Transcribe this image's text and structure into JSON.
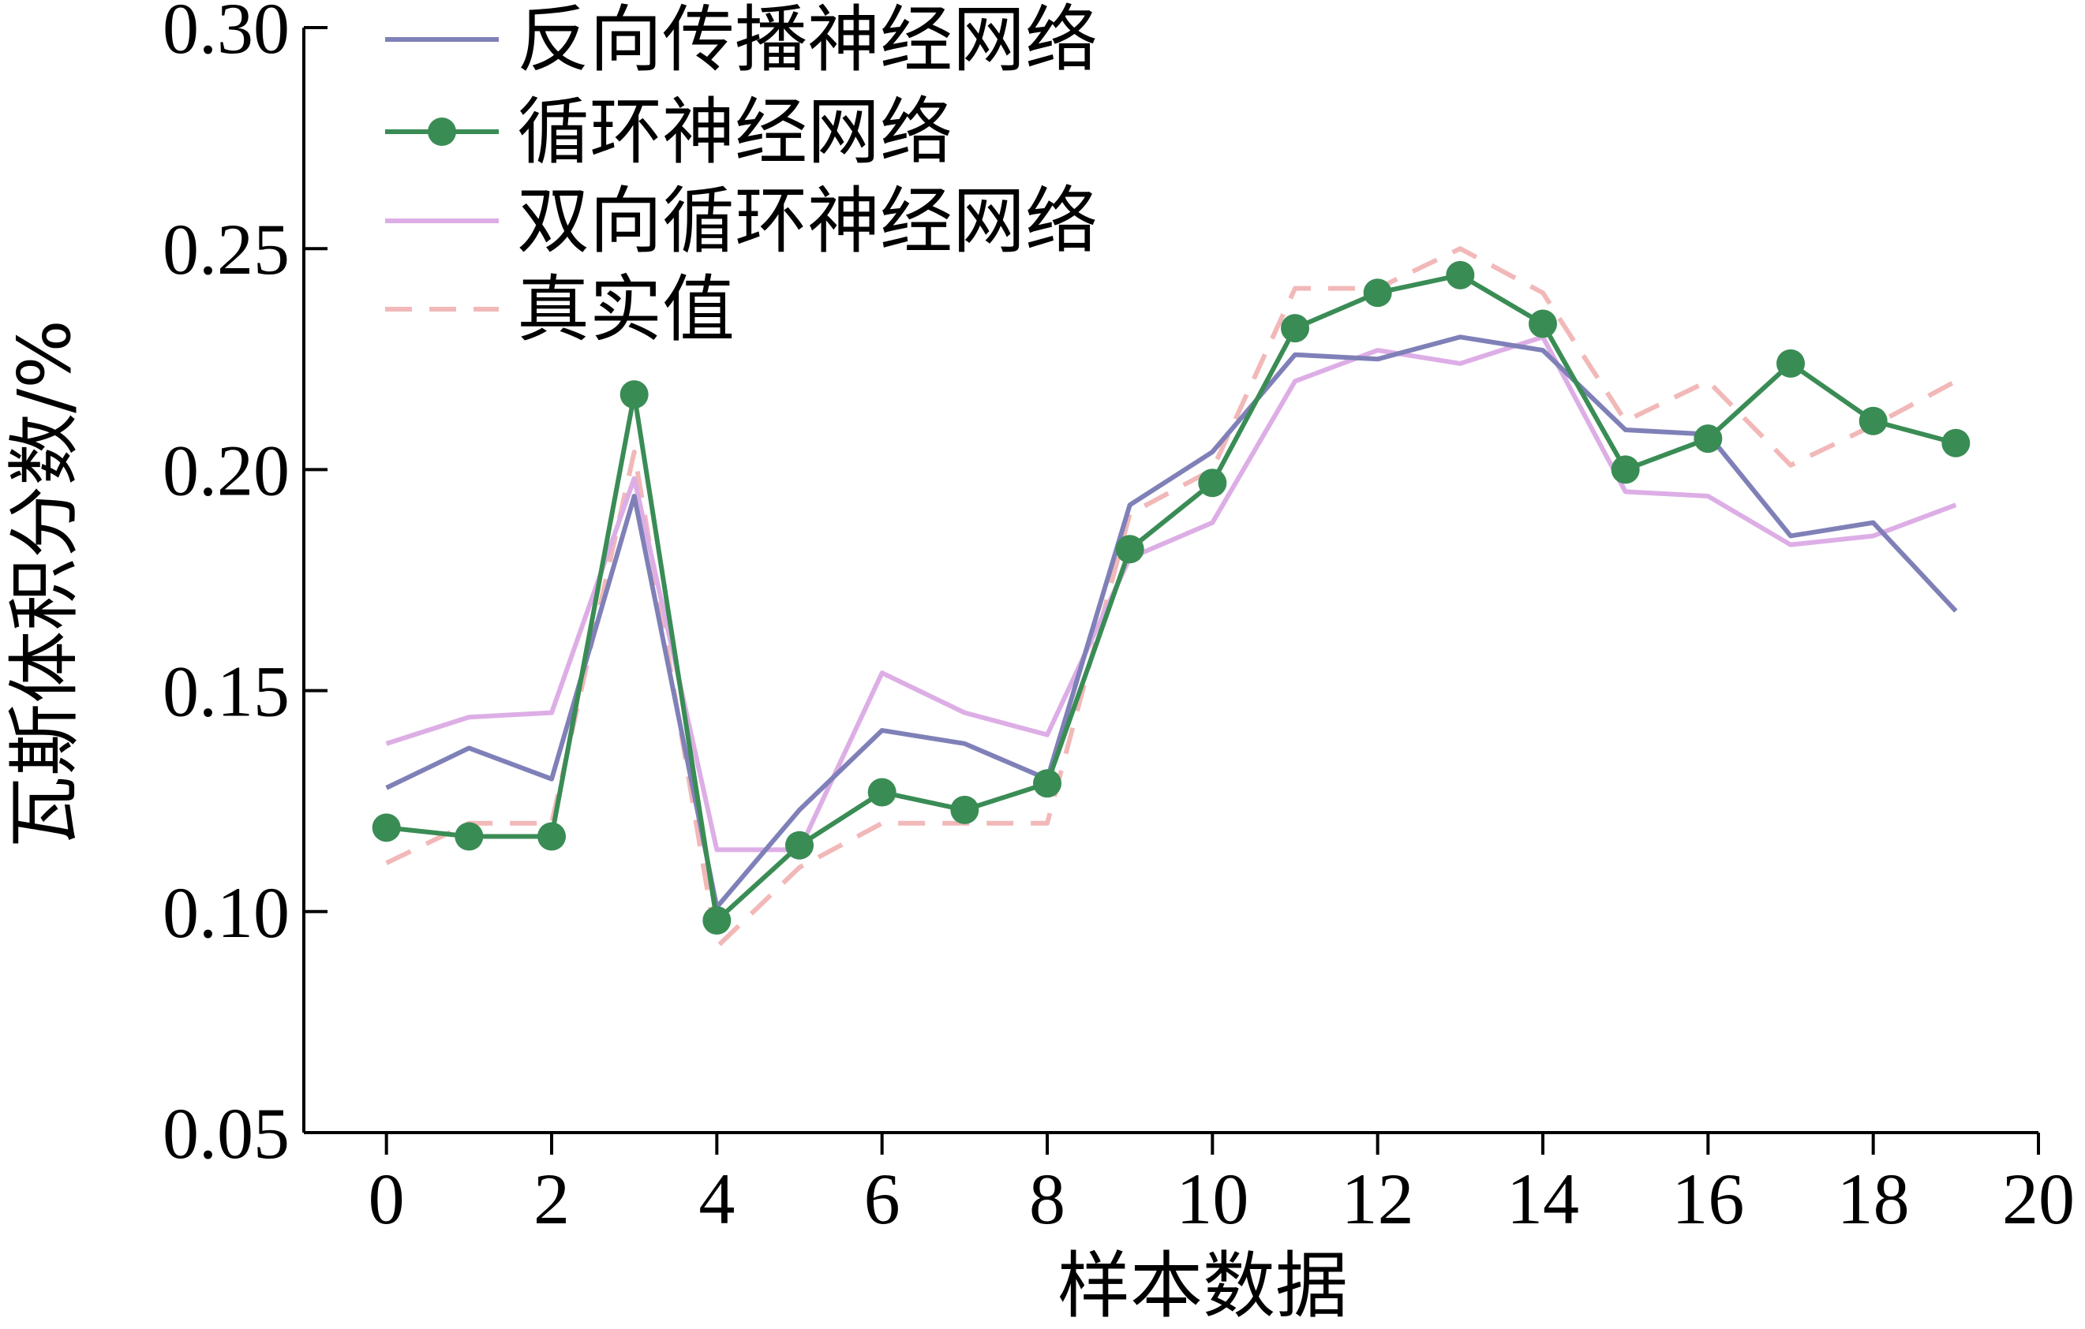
{
  "chart_data": {
    "type": "line",
    "xlabel": "样本数据",
    "ylabel": "瓦斯体积分数/%",
    "xlim": [
      -1,
      20
    ],
    "ylim": [
      0.05,
      0.3
    ],
    "xticks": [
      0,
      2,
      4,
      6,
      8,
      10,
      12,
      14,
      16,
      18,
      20
    ],
    "xtick_labels": [
      "0",
      "2",
      "4",
      "6",
      "8",
      "10",
      "12",
      "14",
      "16",
      "18",
      "20"
    ],
    "yticks": [
      0.05,
      0.1,
      0.15,
      0.2,
      0.25,
      0.3
    ],
    "ytick_labels": [
      "0.05",
      "0.10",
      "0.15",
      "0.20",
      "0.25",
      "0.30"
    ],
    "grid": false,
    "legend_position": "top-left",
    "x": [
      0,
      1,
      2,
      3,
      4,
      5,
      6,
      7,
      8,
      9,
      10,
      11,
      12,
      13,
      14,
      15,
      16,
      17,
      18,
      19
    ],
    "series": [
      {
        "name": "反向传播神经网络",
        "color": "#8080b8",
        "style": "solid",
        "marker": "none",
        "values": [
          0.128,
          0.137,
          0.13,
          0.194,
          0.101,
          0.123,
          0.141,
          0.138,
          0.13,
          0.192,
          0.204,
          0.226,
          0.225,
          0.23,
          0.227,
          0.209,
          0.208,
          0.185,
          0.188,
          0.168
        ]
      },
      {
        "name": "循环神经网络",
        "color": "#3a8c55",
        "style": "solid",
        "marker": "circle",
        "values": [
          0.119,
          0.117,
          0.117,
          0.217,
          0.098,
          0.115,
          0.127,
          0.123,
          0.129,
          0.182,
          0.197,
          0.232,
          0.24,
          0.244,
          0.233,
          0.2,
          0.207,
          0.224,
          0.211,
          0.206
        ]
      },
      {
        "name": "双向循环神经网络",
        "color": "#ddaee6",
        "style": "solid",
        "marker": "none",
        "values": [
          0.138,
          0.144,
          0.145,
          0.198,
          0.114,
          0.114,
          0.154,
          0.145,
          0.14,
          0.18,
          0.188,
          0.22,
          0.227,
          0.224,
          0.23,
          0.195,
          0.194,
          0.183,
          0.185,
          0.192
        ]
      },
      {
        "name": "真实值",
        "color": "#f2b8b8",
        "style": "dashed",
        "marker": "none",
        "values": [
          0.111,
          0.12,
          0.12,
          0.204,
          0.092,
          0.11,
          0.12,
          0.12,
          0.12,
          0.19,
          0.2,
          0.241,
          0.241,
          0.25,
          0.24,
          0.211,
          0.22,
          0.201,
          0.21,
          0.22
        ]
      }
    ]
  }
}
